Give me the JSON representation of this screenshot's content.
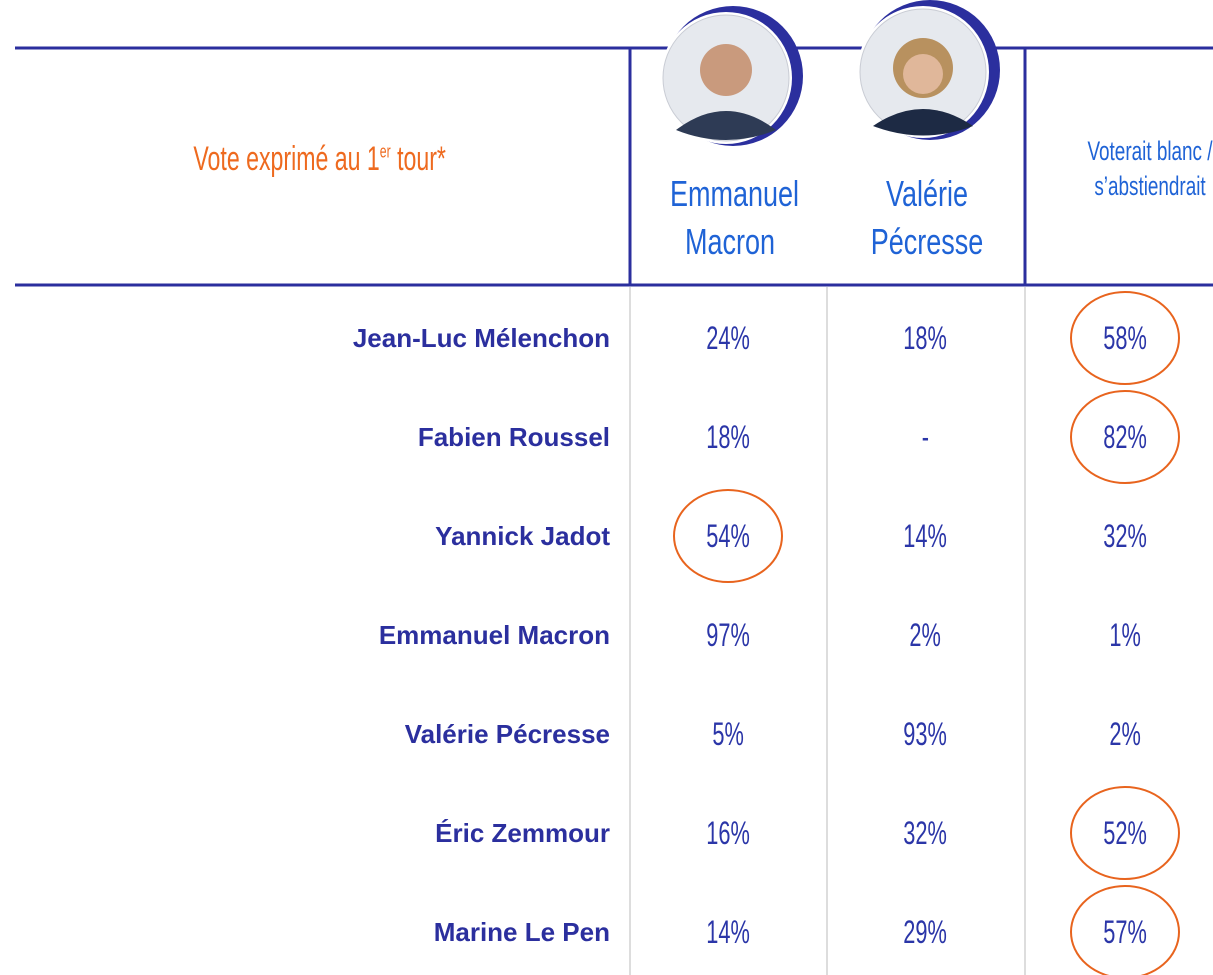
{
  "header": {
    "title": {
      "main": "Vote exprimé au 1",
      "sup": "er",
      "rest": " tour*"
    },
    "columns": [
      "Emmanuel Macron",
      "Valérie Pécresse",
      "Voterait blanc / s’abstiendrait"
    ]
  },
  "table": {
    "rows": [
      {
        "label": "Jean-Luc Mélenchon",
        "cells": [
          {
            "text": "24%"
          },
          {
            "text": "18%"
          },
          {
            "text": "58%",
            "circled": true
          }
        ]
      },
      {
        "label": "Fabien Roussel",
        "cells": [
          {
            "text": "18%"
          },
          {
            "text": "-"
          },
          {
            "text": "82%",
            "circled": true
          }
        ]
      },
      {
        "label": "Yannick Jadot",
        "cells": [
          {
            "text": "54%",
            "circled": true
          },
          {
            "text": "14%"
          },
          {
            "text": "32%"
          }
        ]
      },
      {
        "label": "Emmanuel Macron",
        "cells": [
          {
            "text": "97%"
          },
          {
            "text": "2%"
          },
          {
            "text": "1%"
          }
        ]
      },
      {
        "label": "Valérie Pécresse",
        "cells": [
          {
            "text": "5%"
          },
          {
            "text": "93%"
          },
          {
            "text": "2%"
          }
        ]
      },
      {
        "label": "Éric Zemmour",
        "cells": [
          {
            "text": "16%"
          },
          {
            "text": "32%"
          },
          {
            "text": "52%",
            "circled": true
          }
        ]
      },
      {
        "label": "Marine Le Pen",
        "cells": [
          {
            "text": "14%"
          },
          {
            "text": "29%"
          },
          {
            "text": "57%",
            "circled": true
          }
        ]
      }
    ]
  }
}
